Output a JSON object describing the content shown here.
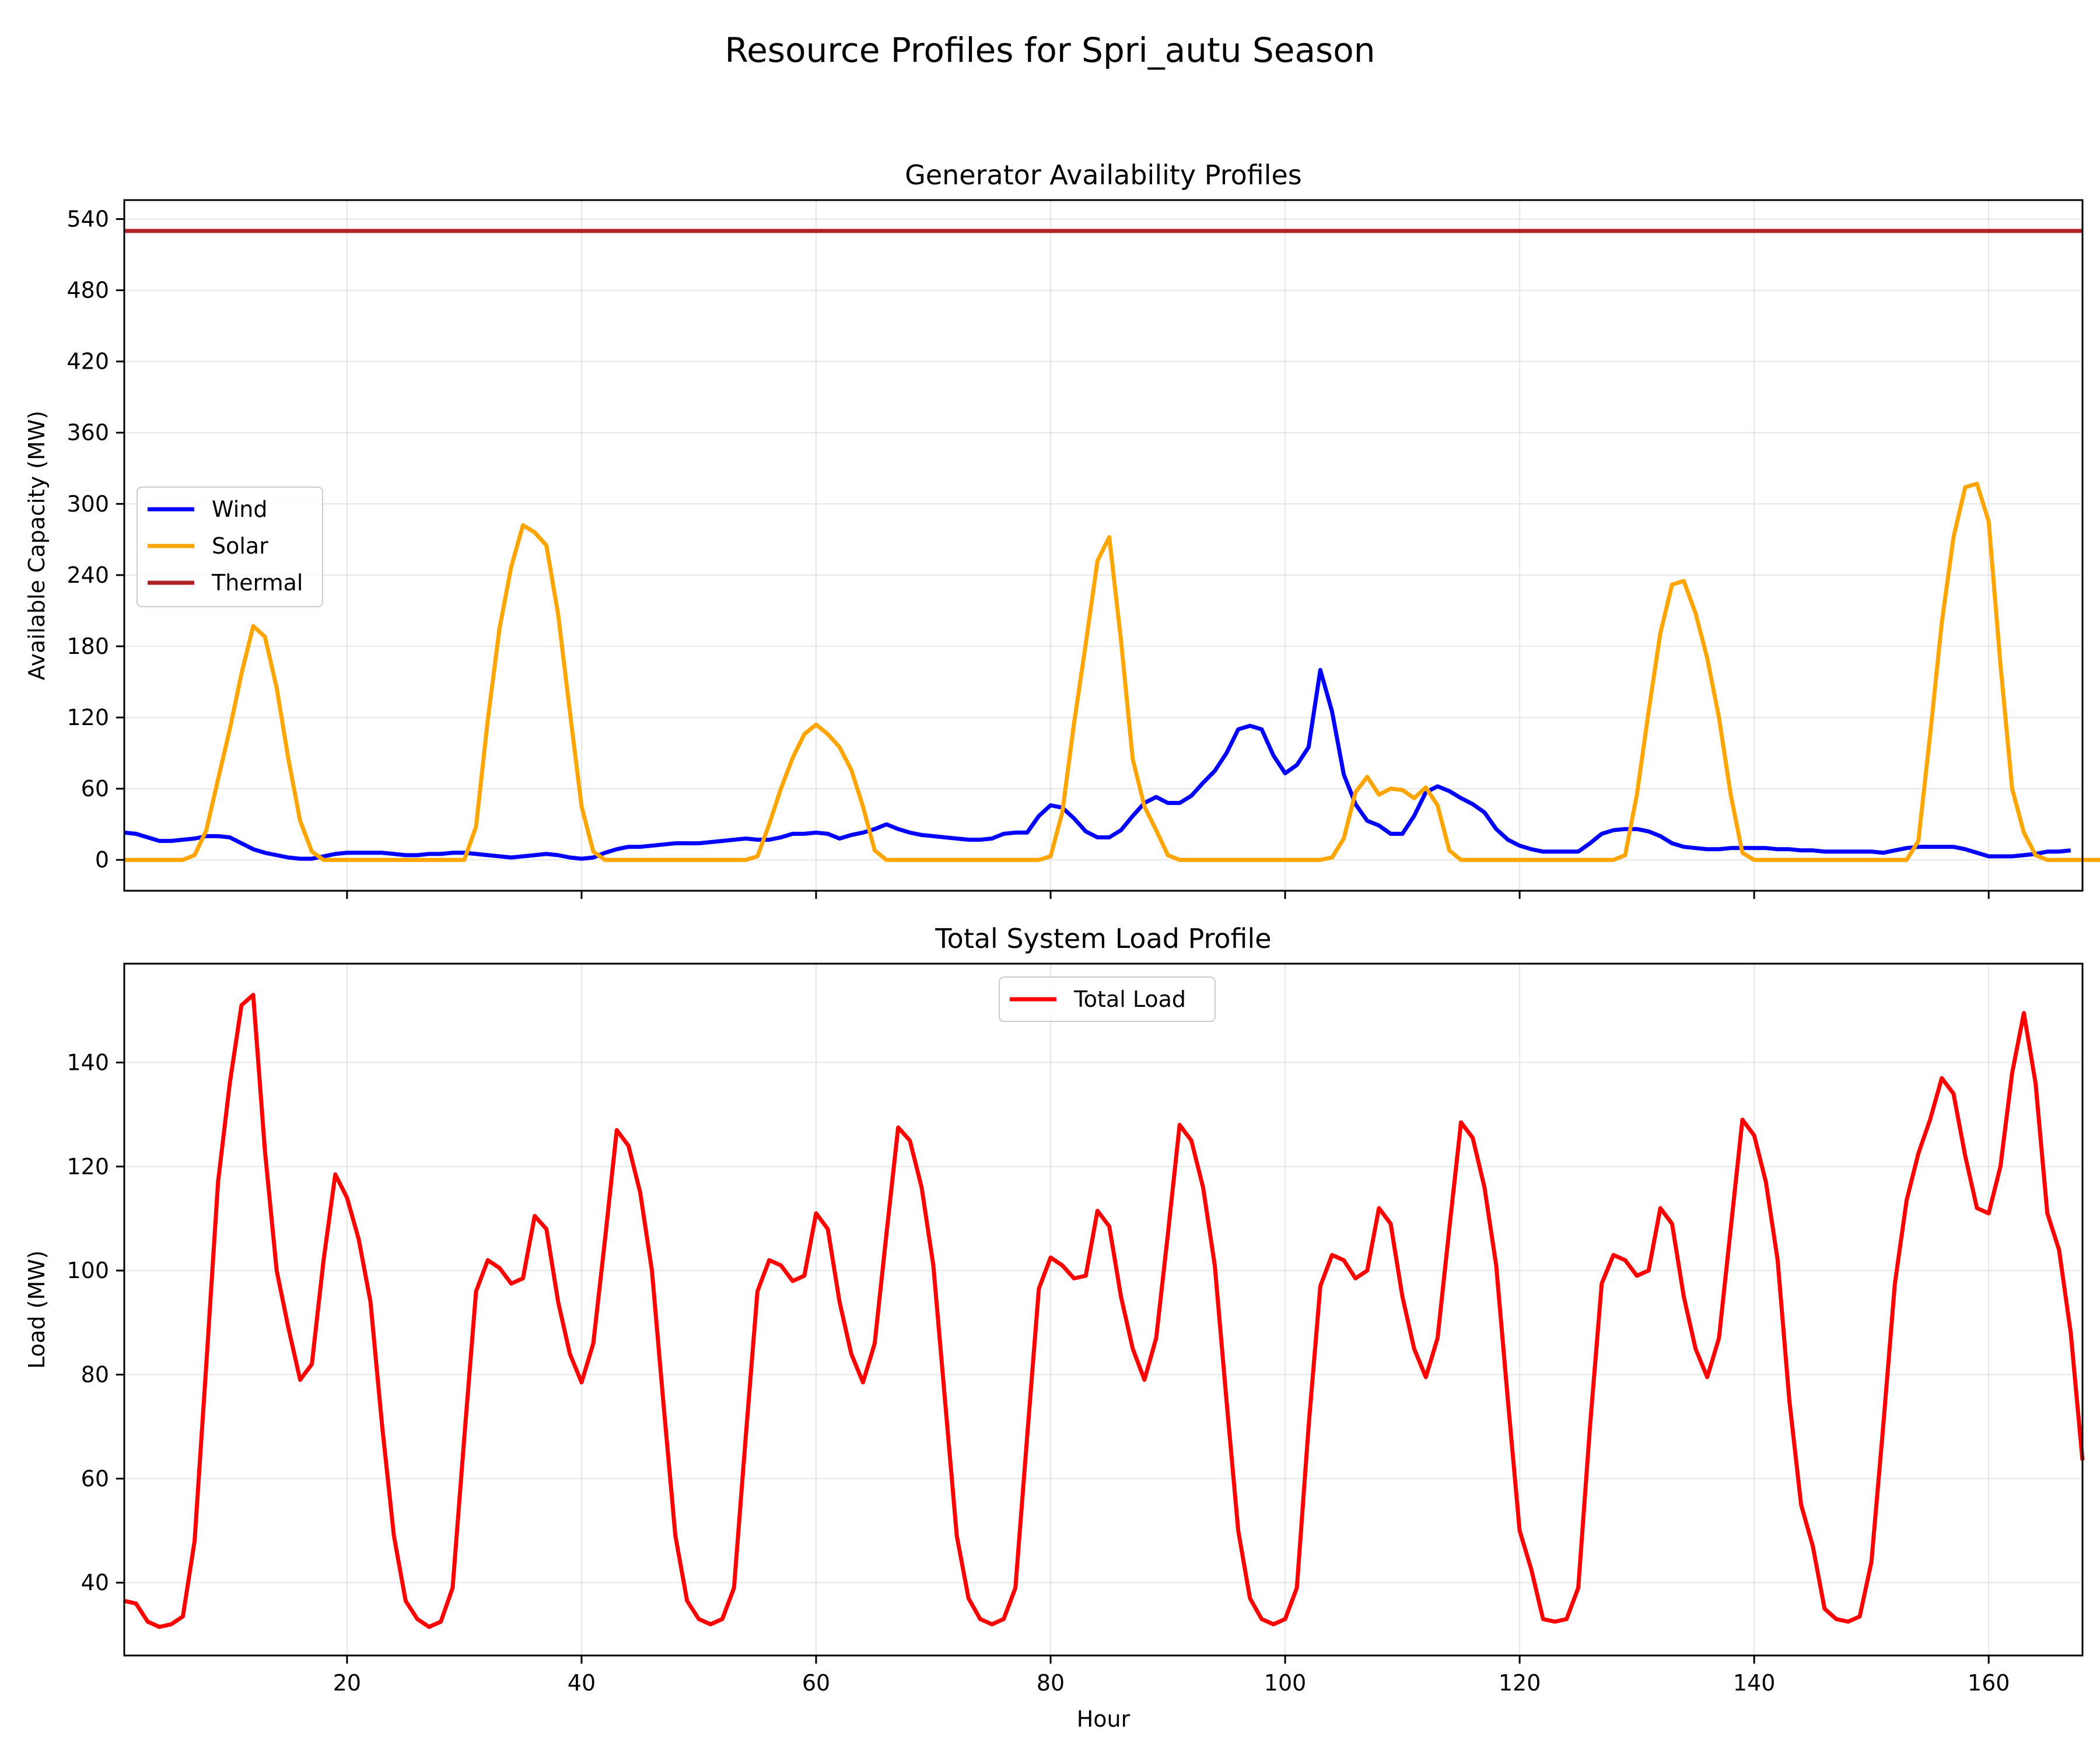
{
  "figure_title": "Resource Profiles for Spri_autu Season",
  "chart_data": [
    {
      "type": "line",
      "title": "Generator Availability Profiles",
      "xlabel": "",
      "ylabel": "Available Capacity (MW)",
      "xlim": [
        1,
        168
      ],
      "ylim": [
        -26,
        556
      ],
      "xticks": [
        20,
        40,
        60,
        80,
        100,
        120,
        140,
        160
      ],
      "yticks": [
        0,
        60,
        120,
        180,
        240,
        300,
        360,
        420,
        480,
        540
      ],
      "grid": true,
      "legend": "center-left",
      "x_start": 1,
      "series": [
        {
          "name": "Wind",
          "color": "#0000ff",
          "values": [
            23,
            22,
            19,
            16,
            16,
            17,
            18,
            20,
            20,
            19,
            14,
            9,
            6,
            4,
            2,
            1,
            1,
            3,
            5,
            6,
            6,
            6,
            6,
            5,
            4,
            4,
            5,
            5,
            6,
            6,
            5,
            4,
            3,
            2,
            3,
            4,
            5,
            4,
            2,
            1,
            2,
            6,
            9,
            11,
            11,
            12,
            13,
            14,
            14,
            14,
            15,
            16,
            17,
            18,
            17,
            17,
            19,
            22,
            22,
            23,
            22,
            18,
            21,
            23,
            26,
            30,
            26,
            23,
            21,
            20,
            19,
            18,
            17,
            17,
            18,
            22,
            23,
            23,
            37,
            46,
            44,
            35,
            24,
            19,
            19,
            25,
            37,
            48,
            53,
            48,
            48,
            54,
            65,
            75,
            90,
            110,
            113,
            110,
            88,
            73,
            80,
            95,
            160,
            125,
            72,
            47,
            33,
            29,
            22,
            22,
            37,
            57,
            62,
            58,
            52,
            47,
            40,
            26,
            17,
            12,
            9,
            7,
            7,
            7,
            7,
            14,
            22,
            25,
            26,
            26,
            24,
            20,
            14,
            11,
            10,
            9,
            9,
            10,
            10,
            10,
            10,
            9,
            9,
            8,
            8,
            7,
            7,
            7,
            7,
            7,
            6,
            8,
            10,
            11,
            11,
            11,
            11,
            9,
            6,
            3,
            3,
            3,
            4,
            5,
            7,
            7,
            8
          ]
        },
        {
          "name": "Solar",
          "color": "#ffa500",
          "values": [
            0,
            0,
            0,
            0,
            0,
            0,
            4,
            25,
            68,
            110,
            157,
            197,
            188,
            145,
            85,
            33,
            7,
            0,
            0,
            0,
            0,
            0,
            0,
            0,
            0,
            0,
            0,
            0,
            0,
            0,
            28,
            118,
            195,
            247,
            282,
            276,
            265,
            207,
            125,
            45,
            7,
            0,
            0,
            0,
            0,
            0,
            0,
            0,
            0,
            0,
            0,
            0,
            0,
            0,
            3,
            30,
            60,
            86,
            106,
            114,
            106,
            95,
            76,
            45,
            8,
            0,
            0,
            0,
            0,
            0,
            0,
            0,
            0,
            0,
            0,
            0,
            0,
            0,
            0,
            3,
            40,
            115,
            182,
            252,
            272,
            185,
            85,
            45,
            25,
            4,
            0,
            0,
            0,
            0,
            0,
            0,
            0,
            0,
            0,
            0,
            0,
            0,
            0,
            2,
            18,
            57,
            70,
            55,
            60,
            59,
            52,
            61,
            46,
            8,
            0,
            0,
            0,
            0,
            0,
            0,
            0,
            0,
            0,
            0,
            0,
            0,
            0,
            0,
            4,
            55,
            125,
            191,
            232,
            235,
            208,
            170,
            120,
            55,
            6,
            0,
            0,
            0,
            0,
            0,
            0,
            0,
            0,
            0,
            0,
            0,
            0,
            0,
            0,
            16,
            105,
            200,
            272,
            314,
            317,
            285,
            165,
            60,
            23,
            4,
            0,
            0,
            0,
            0,
            0,
            0,
            0
          ]
        },
        {
          "name": "Thermal",
          "color": "#b22222",
          "values": [
            530,
            530
          ]
        }
      ]
    },
    {
      "type": "line",
      "title": "Total System Load Profile",
      "xlabel": "Hour",
      "ylabel": "Load (MW)",
      "xlim": [
        1,
        168
      ],
      "ylim": [
        26,
        159
      ],
      "xticks": [
        20,
        40,
        60,
        80,
        100,
        120,
        140,
        160
      ],
      "yticks": [
        40,
        60,
        80,
        100,
        120,
        140
      ],
      "grid": true,
      "legend": "upper-center",
      "x_start": 1,
      "series": [
        {
          "name": "Total Load",
          "color": "#ff0000",
          "values": [
            36.5,
            36,
            32.5,
            31.5,
            32,
            33.5,
            48,
            82,
            117,
            136,
            151,
            153,
            123,
            100,
            89,
            79,
            82,
            102,
            118.5,
            114,
            106,
            94,
            70,
            49,
            36.5,
            33,
            31.5,
            32.5,
            39,
            68,
            96,
            102,
            100.5,
            97.5,
            98.5,
            110.5,
            108,
            94,
            84,
            78.5,
            86,
            106,
            127,
            124,
            115,
            100,
            74,
            49,
            36.5,
            33,
            32,
            33,
            39,
            68,
            96,
            102,
            101,
            98,
            99,
            111,
            108,
            94,
            84,
            78.5,
            86,
            107,
            127.5,
            125,
            116,
            101,
            75,
            49,
            37,
            33,
            32,
            33,
            39,
            68,
            96.5,
            102.5,
            101,
            98.5,
            99,
            111.5,
            108.5,
            95,
            85,
            79,
            87,
            107,
            128,
            125,
            116,
            101,
            75,
            50,
            37,
            33,
            32,
            33,
            39,
            70,
            97,
            103,
            102,
            98.5,
            100,
            112,
            109,
            95,
            85,
            79.5,
            87,
            108,
            128.5,
            125.5,
            116,
            101,
            75,
            50,
            42.5,
            33,
            32.5,
            33,
            39,
            70,
            97.5,
            103,
            102,
            99,
            100,
            112,
            109,
            95,
            85,
            79.5,
            87,
            108,
            129,
            126,
            117,
            102,
            75,
            55,
            47,
            35,
            33,
            32.5,
            33.5,
            44,
            70,
            97.5,
            113.5,
            122.5,
            129,
            137,
            134,
            122,
            112,
            111,
            120,
            138,
            149.5,
            136,
            111,
            104,
            88,
            63.5
          ]
        }
      ]
    }
  ]
}
